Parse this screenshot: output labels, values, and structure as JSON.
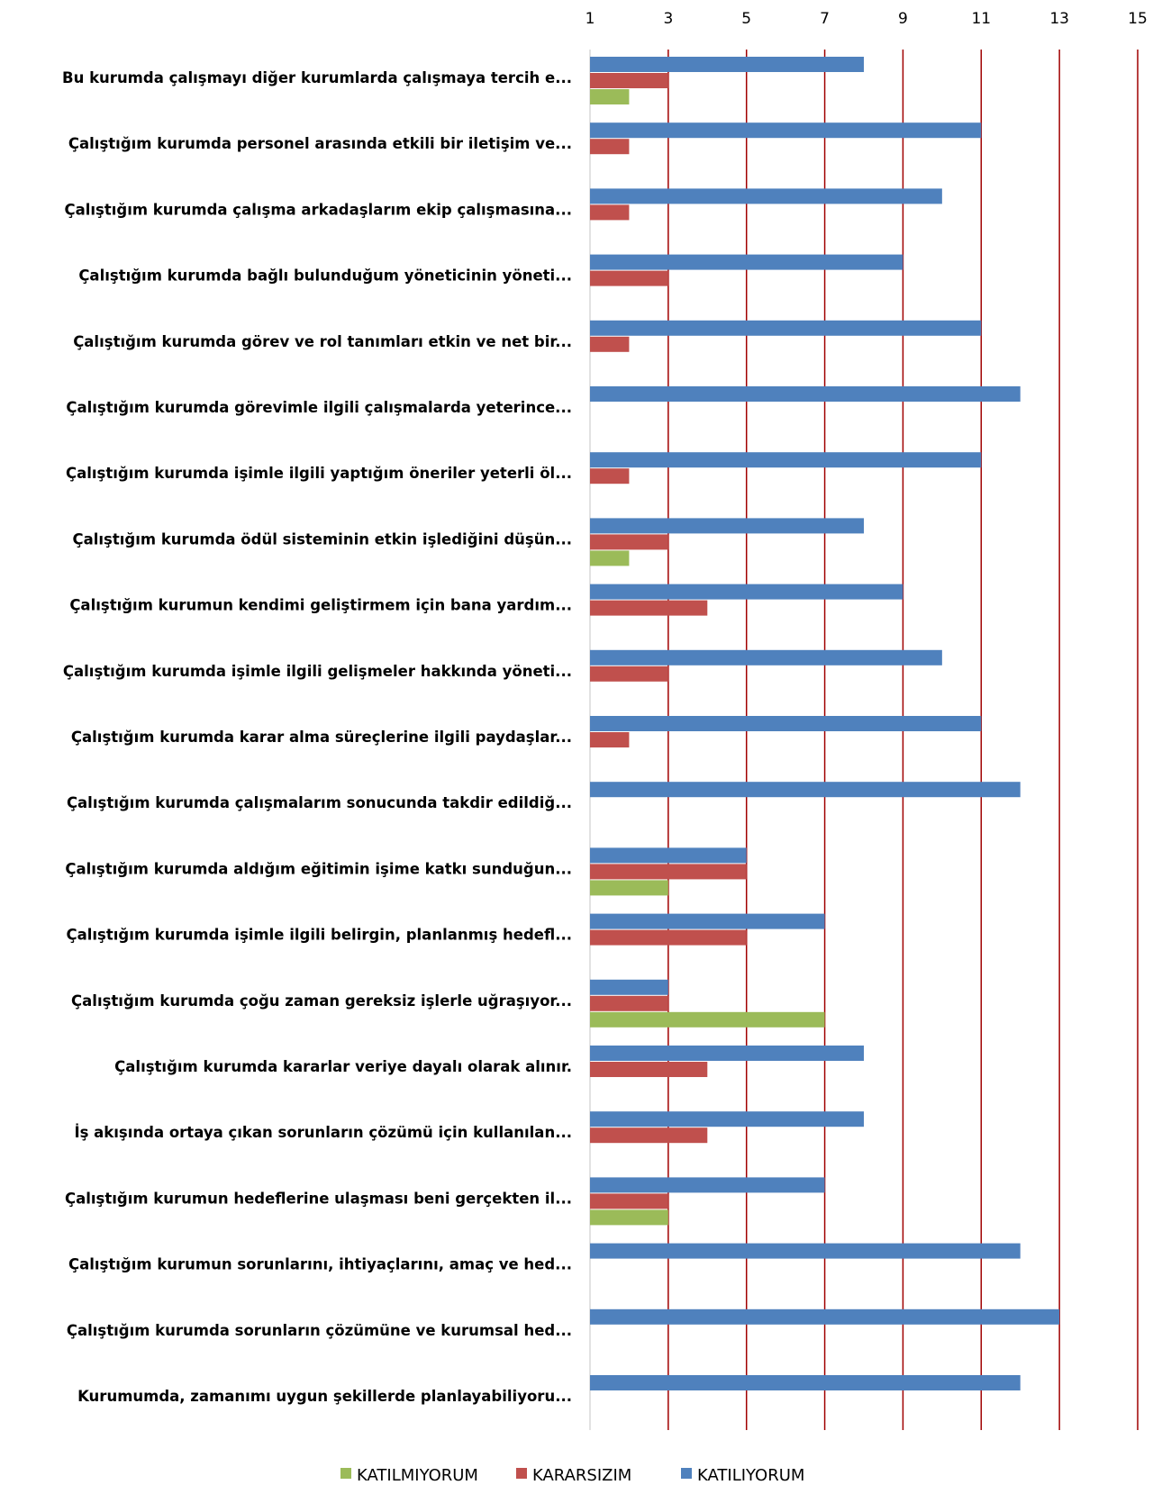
{
  "chart_data": {
    "type": "bar",
    "orientation": "horizontal",
    "title": "",
    "xlabel": "",
    "ylabel": "",
    "xlim": [
      1,
      15
    ],
    "x_ticks": [
      1,
      3,
      5,
      7,
      9,
      11,
      13,
      15
    ],
    "grid": "vertical",
    "gridline_color": "#a00000",
    "legend_position": "bottom",
    "categories": [
      "Bu kurumda çalışmayı diğer kurumlarda çalışmaya tercih e...",
      "Çalıştığım kurumda personel arasında etkili bir iletişim ve...",
      "Çalıştığım kurumda çalışma arkadaşlarım ekip çalışmasına...",
      "Çalıştığım kurumda bağlı bulunduğum yöneticinin yöneti...",
      "Çalıştığım kurumda görev ve rol tanımları etkin ve net bir...",
      "Çalıştığım kurumda görevimle ilgili çalışmalarda yeterince...",
      "Çalıştığım kurumda işimle ilgili yaptığım öneriler yeterli öl...",
      "Çalıştığım kurumda ödül sisteminin etkin işlediğini düşün...",
      "Çalıştığım kurumun kendimi geliştirmem için bana yardım...",
      "Çalıştığım kurumda işimle ilgili gelişmeler hakkında yöneti...",
      "Çalıştığım kurumda karar alma süreçlerine ilgili paydaşlar...",
      "Çalıştığım kurumda çalışmalarım sonucunda takdir edildiğ...",
      "Çalıştığım kurumda aldığım eğitimin işime katkı sunduğun...",
      "Çalıştığım kurumda işimle ilgili belirgin, planlanmış hedefl...",
      "Çalıştığım kurumda çoğu zaman gereksiz işlerle uğraşıyor...",
      "Çalıştığım kurumda kararlar veriye dayalı olarak alınır.",
      "İş akışında ortaya çıkan sorunların çözümü için kullanılan...",
      "Çalıştığım kurumun hedeflerine ulaşması beni gerçekten il...",
      "Çalıştığım kurumun sorunlarını, ihtiyaçlarını, amaç ve hed...",
      "Çalıştığım kurumda sorunların çözümüne ve kurumsal hed...",
      "Kurumumda, zamanımı uygun şekillerde planlayabiliyoru..."
    ],
    "series": [
      {
        "name": "KATILIYORUM",
        "color": "#4f81bd",
        "values": [
          8,
          11,
          10,
          9,
          11,
          12,
          11,
          8,
          9,
          10,
          11,
          12,
          5,
          7,
          3,
          8,
          8,
          7,
          12,
          13,
          12
        ]
      },
      {
        "name": "KARARSIZIM",
        "color": "#c0504d",
        "values": [
          3,
          2,
          2,
          3,
          2,
          null,
          2,
          3,
          4,
          3,
          2,
          null,
          5,
          5,
          3,
          4,
          4,
          3,
          null,
          null,
          null
        ]
      },
      {
        "name": "KATILMIYORUM",
        "color": "#9bbb59",
        "values": [
          2,
          null,
          null,
          null,
          null,
          null,
          null,
          2,
          null,
          null,
          null,
          null,
          3,
          null,
          7,
          null,
          null,
          3,
          null,
          null,
          null
        ]
      }
    ],
    "legend_order": [
      "KATILMIYORUM",
      "KARARSIZIM",
      "KATILIYORUM"
    ]
  }
}
